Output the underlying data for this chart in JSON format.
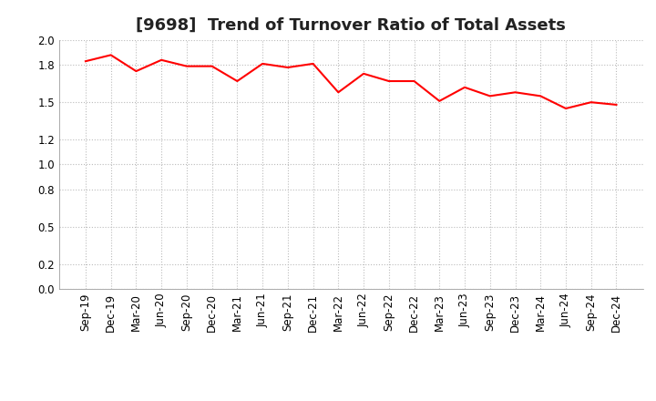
{
  "title": "[9698]  Trend of Turnover Ratio of Total Assets",
  "labels": [
    "Sep-19",
    "Dec-19",
    "Mar-20",
    "Jun-20",
    "Sep-20",
    "Dec-20",
    "Mar-21",
    "Jun-21",
    "Sep-21",
    "Dec-21",
    "Mar-22",
    "Jun-22",
    "Sep-22",
    "Dec-22",
    "Mar-23",
    "Jun-23",
    "Sep-23",
    "Dec-23",
    "Mar-24",
    "Jun-24",
    "Sep-24",
    "Dec-24"
  ],
  "values": [
    1.83,
    1.88,
    1.75,
    1.84,
    1.79,
    1.79,
    1.67,
    1.81,
    1.78,
    1.81,
    1.58,
    1.73,
    1.67,
    1.67,
    1.51,
    1.62,
    1.55,
    1.58,
    1.55,
    1.45,
    1.5,
    1.48
  ],
  "line_color": "#ff0000",
  "line_width": 1.5,
  "ylim": [
    0.0,
    2.0
  ],
  "yticks": [
    0.0,
    0.2,
    0.5,
    0.8,
    1.0,
    1.2,
    1.5,
    1.8,
    2.0
  ],
  "grid_color": "#bbbbbb",
  "background_color": "#ffffff",
  "title_fontsize": 13,
  "tick_fontsize": 8.5
}
